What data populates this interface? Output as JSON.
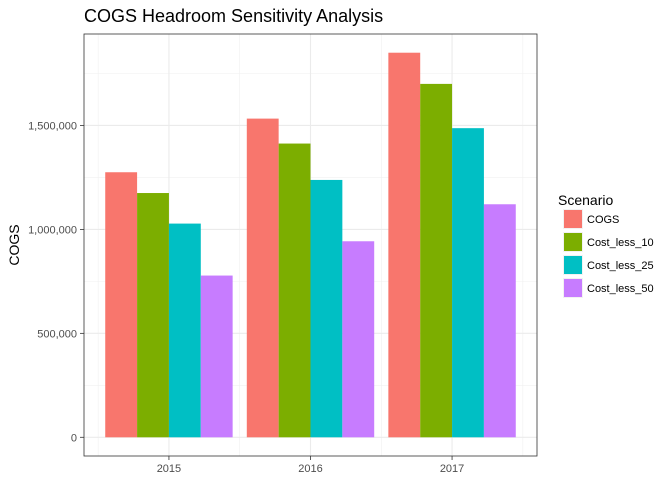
{
  "chart_data": {
    "type": "bar",
    "title": "COGS Headroom Sensitivity Analysis",
    "xlabel": "",
    "ylabel": "COGS",
    "categories": [
      "2015",
      "2016",
      "2017"
    ],
    "series": [
      {
        "name": "COGS",
        "color": "#F8766D",
        "values": [
          1275000,
          1533000,
          1850000
        ]
      },
      {
        "name": "Cost_less_10",
        "color": "#7CAE00",
        "values": [
          1175000,
          1413000,
          1700000
        ]
      },
      {
        "name": "Cost_less_25",
        "color": "#00BFC4",
        "values": [
          1028000,
          1238000,
          1487000
        ]
      },
      {
        "name": "Cost_less_50",
        "color": "#C77CFF",
        "values": [
          778000,
          943000,
          1121000
        ]
      }
    ],
    "ylim": [
      -90000,
      1940000
    ],
    "yticks": [
      0,
      500000,
      1000000,
      1500000
    ],
    "ytick_labels": [
      "0",
      "500,000",
      "1,000,000",
      "1,500,000"
    ],
    "legend_title": "Scenario",
    "legend_position": "right",
    "grid": true,
    "panel_border": true
  }
}
